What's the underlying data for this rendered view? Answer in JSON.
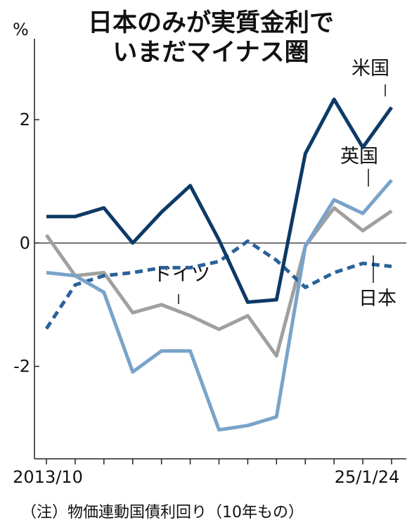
{
  "chart_data": {
    "type": "line",
    "title_line1": "日本のみが実質金利で",
    "title_line2": "いまだマイナス圏",
    "unit": "%",
    "x_start_label": "2013/10",
    "x_end_label": "25/1/24",
    "ylim": [
      -3.5,
      2.8
    ],
    "yticks": [
      2,
      0,
      -2
    ],
    "ytick_labels": [
      "2",
      "0",
      "-2"
    ],
    "grid": false,
    "series": [
      {
        "name": "米国",
        "color": "#0d3a66",
        "dashed": false,
        "values": [
          0.43,
          0.43,
          0.57,
          0.0,
          0.5,
          0.93,
          0.05,
          -0.96,
          -0.92,
          1.45,
          2.33,
          1.55,
          2.2
        ]
      },
      {
        "name": "英国",
        "color": "#79a3c9",
        "dashed": false,
        "values": [
          -0.48,
          -0.53,
          -0.8,
          -2.09,
          -1.75,
          -1.75,
          -3.03,
          -2.96,
          -2.82,
          -0.05,
          0.7,
          0.48,
          1.02
        ]
      },
      {
        "name": "ドイツ",
        "color": "#a0a0a0",
        "dashed": false,
        "values": [
          0.13,
          -0.53,
          -0.48,
          -1.13,
          -1.0,
          -1.18,
          -1.4,
          -1.18,
          -1.83,
          -0.05,
          0.57,
          0.2,
          0.52
        ]
      },
      {
        "name": "日本",
        "color": "#2a6299",
        "dashed": true,
        "values": [
          -1.39,
          -0.68,
          -0.53,
          -0.48,
          -0.4,
          -0.4,
          -0.3,
          0.03,
          -0.28,
          -0.72,
          -0.48,
          -0.33,
          -0.38
        ]
      }
    ],
    "note": "（注）物価連動国債利回り（10年もの）"
  }
}
